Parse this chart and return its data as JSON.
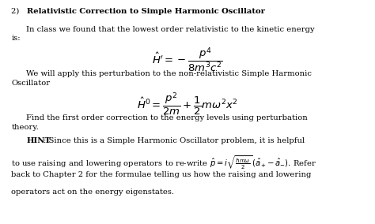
{
  "title_prefix": "2) ",
  "title_bold": "Relativistic Correction to Simple Harmonic Oscillator",
  "bg_color": "#ffffff",
  "text_color": "#000000",
  "figsize": [
    4.74,
    2.84
  ],
  "dpi": 100,
  "para1_line1": "In class we found that the lowest order relativistic to the kinetic energy",
  "para1_line2": "is:",
  "eq1": "$\\hat{H}^{\\prime} = -\\dfrac{p^4}{8m^3c^2}$",
  "para2_line1": "We will apply this perturbation to the non-relativistic Simple Harmonic",
  "para2_line2": "Oscillator",
  "eq2": "$\\hat{H}^0 = \\dfrac{p^2}{2m} + \\dfrac{1}{2}m\\omega^2 x^2$",
  "para3_line1": "Find the first order correction to the energy levels using perturbation",
  "para3_line2": "theory.",
  "hint_bold": "HINT",
  "hint_rest_line1": ": Since this is a Simple Harmonic Oscillator problem, it is helpful",
  "hint_rest_line2": "to use raising and lowering operators to re-write $\\hat{p} = i\\sqrt{\\frac{\\hbar m\\omega}{2}}\\,(\\hat{a}_{+} - \\hat{a}_{-})$. Refer",
  "hint_rest_line3": "back to Chapter 2 for the formulae telling us how the raising and lowering",
  "hint_rest_line4": "operators act on the energy eigenstates."
}
